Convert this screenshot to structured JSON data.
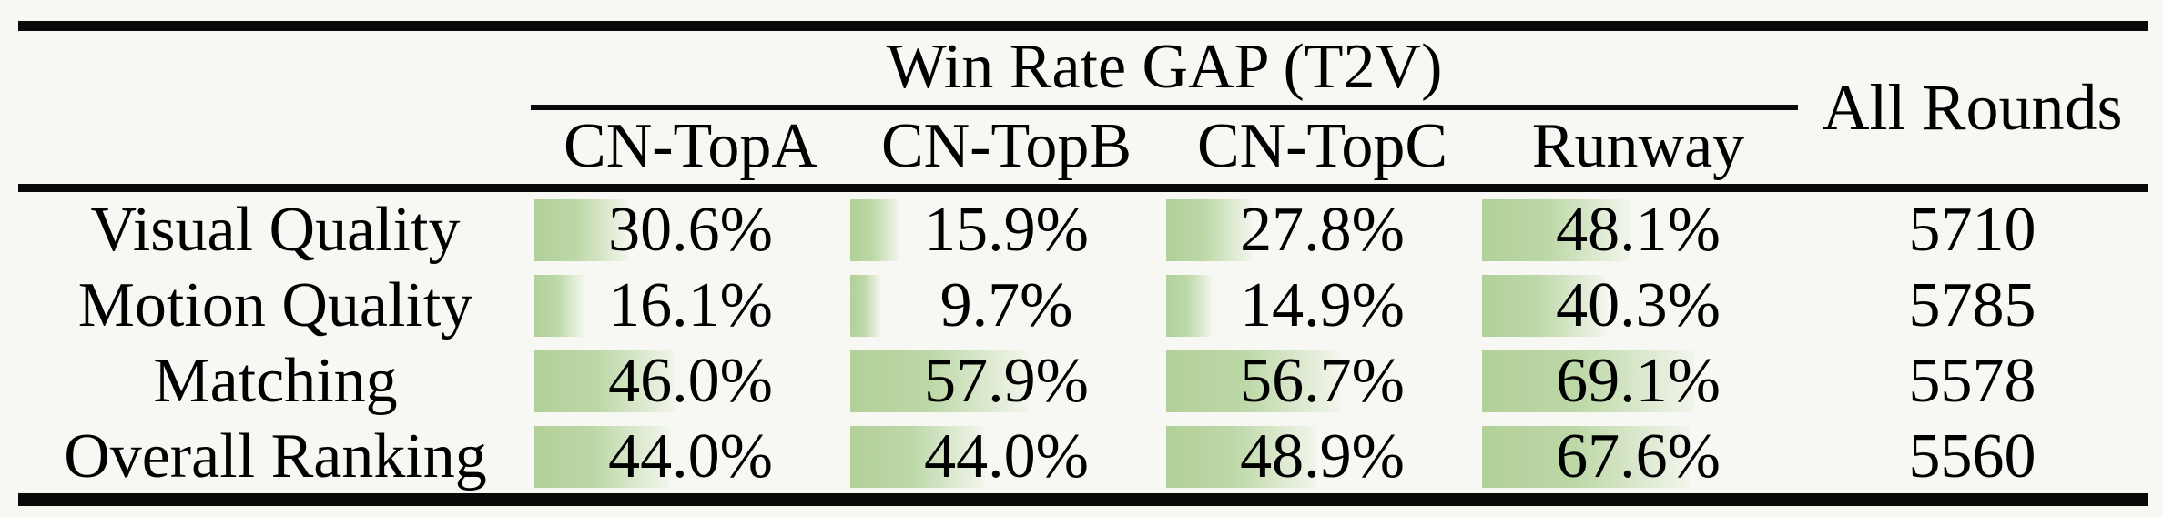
{
  "table": {
    "group_header": "Win Rate GAP (T2V)",
    "all_rounds_header": "All Rounds",
    "columns": [
      "CN-TopA",
      "CN-TopB",
      "CN-TopC",
      "Runway"
    ],
    "rows": [
      {
        "label": "Visual Quality",
        "cells": [
          {
            "value": 30.6,
            "text": "30.6%"
          },
          {
            "value": 15.9,
            "text": "15.9%"
          },
          {
            "value": 27.8,
            "text": "27.8%"
          },
          {
            "value": 48.1,
            "text": "48.1%"
          }
        ],
        "all_rounds": "5710"
      },
      {
        "label": "Motion Quality",
        "cells": [
          {
            "value": 16.1,
            "text": "16.1%"
          },
          {
            "value": 9.7,
            "text": "9.7%"
          },
          {
            "value": 14.9,
            "text": "14.9%"
          },
          {
            "value": 40.3,
            "text": "40.3%"
          }
        ],
        "all_rounds": "5785"
      },
      {
        "label": "Matching",
        "cells": [
          {
            "value": 46.0,
            "text": "46.0%"
          },
          {
            "value": 57.9,
            "text": "57.9%"
          },
          {
            "value": 56.7,
            "text": "56.7%"
          },
          {
            "value": 69.1,
            "text": "69.1%"
          }
        ],
        "all_rounds": "5578"
      },
      {
        "label": "Overall Ranking",
        "cells": [
          {
            "value": 44.0,
            "text": "44.0%"
          },
          {
            "value": 44.0,
            "text": "44.0%"
          },
          {
            "value": 48.9,
            "text": "48.9%"
          },
          {
            "value": 67.6,
            "text": "67.6%"
          }
        ],
        "all_rounds": "5560"
      }
    ],
    "bar_gradient": {
      "start": "#b2d099",
      "mid": "#bdd8a7",
      "end": "#f2f5ec"
    },
    "rule_color": "#0a0a0a"
  }
}
